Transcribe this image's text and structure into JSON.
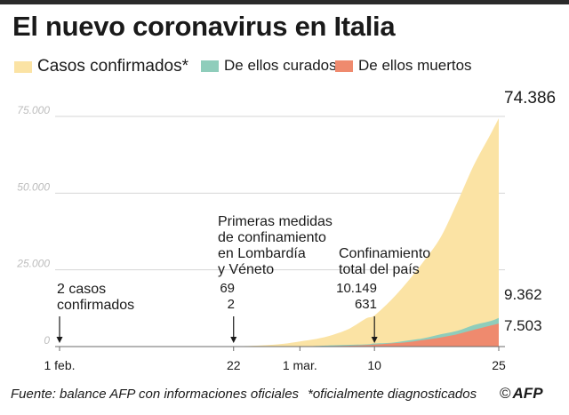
{
  "title": "El nuevo coronavirus en Italia",
  "legend": [
    {
      "label": "Casos confirmados*",
      "color": "#fbe3a4"
    },
    {
      "label": "De ellos curados",
      "color": "#8fcdbb"
    },
    {
      "label": "De ellos muertos",
      "color": "#ef8a6e"
    }
  ],
  "footer": {
    "source": "Fuente: balance AFP con informaciones oficiales",
    "note": "*oficialmente diagnosticados",
    "logo_symbol": "©",
    "logo_text": "AFP"
  },
  "chart_data": {
    "type": "area",
    "stacking": "overlap",
    "x_tick_labels": [
      "1 feb.",
      "22",
      "1 mar.",
      "10",
      "25"
    ],
    "x_tick_dates": [
      "2020-02-01",
      "2020-02-22",
      "2020-03-01",
      "2020-03-10",
      "2020-03-25"
    ],
    "y_ticks": [
      0,
      25000,
      50000,
      75000
    ],
    "y_tick_labels": [
      "0",
      "25.000",
      "50.000",
      "75.000"
    ],
    "ylim": [
      0,
      75000
    ],
    "grid": true,
    "legend_position": "top",
    "series": [
      {
        "name": "Casos confirmados*",
        "color": "#fbe3a4",
        "points": [
          {
            "x": "2020-02-01",
            "y": 2
          },
          {
            "x": "2020-02-21",
            "y": 20
          },
          {
            "x": "2020-02-22",
            "y": 69
          },
          {
            "x": "2020-02-24",
            "y": 229
          },
          {
            "x": "2020-02-26",
            "y": 453
          },
          {
            "x": "2020-02-28",
            "y": 888
          },
          {
            "x": "2020-03-01",
            "y": 1694
          },
          {
            "x": "2020-03-03",
            "y": 2502
          },
          {
            "x": "2020-03-05",
            "y": 3858
          },
          {
            "x": "2020-03-07",
            "y": 5883
          },
          {
            "x": "2020-03-09",
            "y": 9172
          },
          {
            "x": "2020-03-10",
            "y": 10149
          },
          {
            "x": "2020-03-12",
            "y": 15113
          },
          {
            "x": "2020-03-14",
            "y": 21157
          },
          {
            "x": "2020-03-16",
            "y": 27980
          },
          {
            "x": "2020-03-18",
            "y": 35713
          },
          {
            "x": "2020-03-20",
            "y": 47021
          },
          {
            "x": "2020-03-22",
            "y": 59138
          },
          {
            "x": "2020-03-24",
            "y": 69176
          },
          {
            "x": "2020-03-25",
            "y": 74386
          }
        ]
      },
      {
        "name": "De ellos curados",
        "color": "#8fcdbb",
        "points": [
          {
            "x": "2020-02-01",
            "y": 0
          },
          {
            "x": "2020-02-22",
            "y": 1
          },
          {
            "x": "2020-03-01",
            "y": 83
          },
          {
            "x": "2020-03-05",
            "y": 414
          },
          {
            "x": "2020-03-09",
            "y": 724
          },
          {
            "x": "2020-03-10",
            "y": 1004
          },
          {
            "x": "2020-03-12",
            "y": 1258
          },
          {
            "x": "2020-03-14",
            "y": 1966
          },
          {
            "x": "2020-03-16",
            "y": 2749
          },
          {
            "x": "2020-03-18",
            "y": 4025
          },
          {
            "x": "2020-03-20",
            "y": 5129
          },
          {
            "x": "2020-03-22",
            "y": 7024
          },
          {
            "x": "2020-03-24",
            "y": 8326
          },
          {
            "x": "2020-03-25",
            "y": 9362
          }
        ]
      },
      {
        "name": "De ellos muertos",
        "color": "#ef8a6e",
        "points": [
          {
            "x": "2020-02-01",
            "y": 0
          },
          {
            "x": "2020-02-22",
            "y": 2
          },
          {
            "x": "2020-03-01",
            "y": 34
          },
          {
            "x": "2020-03-05",
            "y": 148
          },
          {
            "x": "2020-03-09",
            "y": 463
          },
          {
            "x": "2020-03-10",
            "y": 631
          },
          {
            "x": "2020-03-12",
            "y": 1016
          },
          {
            "x": "2020-03-14",
            "y": 1441
          },
          {
            "x": "2020-03-16",
            "y": 2158
          },
          {
            "x": "2020-03-18",
            "y": 2978
          },
          {
            "x": "2020-03-20",
            "y": 4032
          },
          {
            "x": "2020-03-22",
            "y": 5476
          },
          {
            "x": "2020-03-24",
            "y": 6820
          },
          {
            "x": "2020-03-25",
            "y": 7503
          }
        ]
      }
    ],
    "end_labels": [
      "74.386",
      "9.362",
      "7.503"
    ],
    "annotations": [
      {
        "date": "2020-02-01",
        "lines": [
          "2 casos",
          "confirmados"
        ],
        "values": []
      },
      {
        "date": "2020-02-22",
        "lines": [
          "Primeras medidas",
          "de confinamiento",
          "en Lombardía",
          "y Véneto"
        ],
        "values": [
          "69",
          "2"
        ]
      },
      {
        "date": "2020-03-10",
        "lines": [
          "Confinamiento",
          "total del país"
        ],
        "values": [
          "10.149",
          "631"
        ]
      }
    ]
  }
}
